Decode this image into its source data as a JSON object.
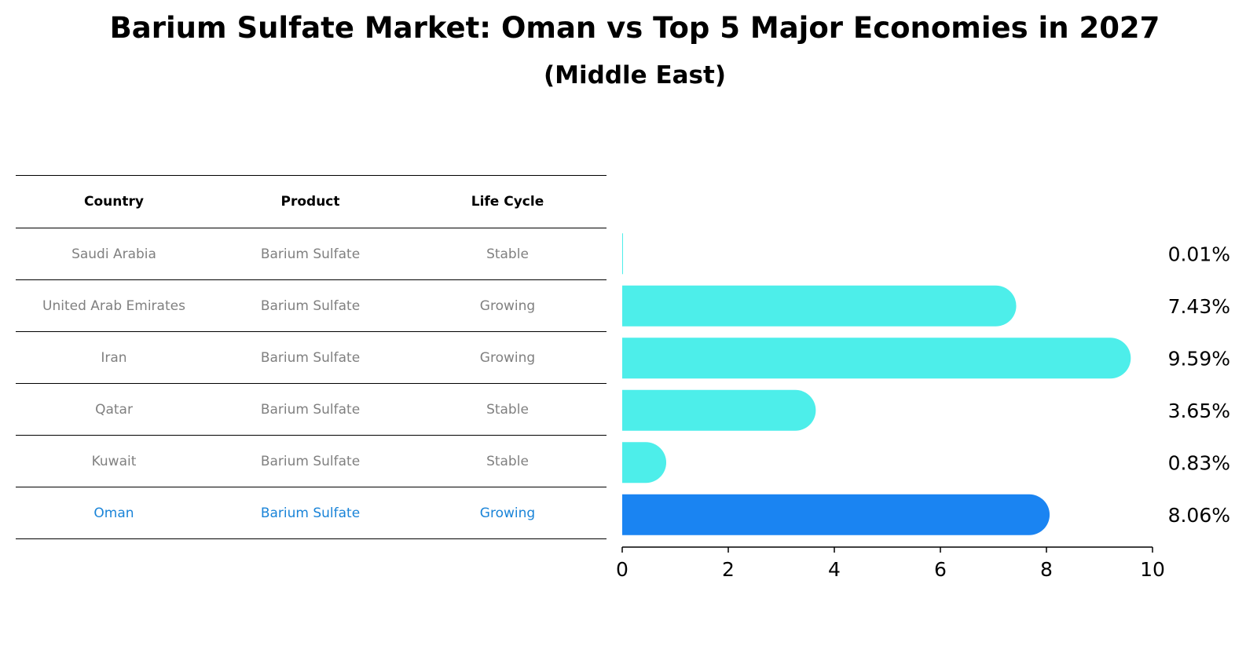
{
  "title": "Barium Sulfate Market: Oman vs Top 5 Major Economies in 2027",
  "subtitle": "(Middle East)",
  "table": {
    "headers": [
      "Country",
      "Product",
      "Life Cycle"
    ],
    "rows": [
      {
        "country": "Saudi Arabia",
        "product": "Barium Sulfate",
        "life_cycle": "Stable"
      },
      {
        "country": "United Arab Emirates",
        "product": "Barium Sulfate",
        "life_cycle": "Growing"
      },
      {
        "country": "Iran",
        "product": "Barium Sulfate",
        "life_cycle": "Growing"
      },
      {
        "country": "Qatar",
        "product": "Barium Sulfate",
        "life_cycle": "Stable"
      },
      {
        "country": "Kuwait",
        "product": "Barium Sulfate",
        "life_cycle": "Stable"
      },
      {
        "country": "Oman",
        "product": "Barium Sulfate",
        "life_cycle": "Growing",
        "highlight": true
      }
    ]
  },
  "chart_data": {
    "type": "bar",
    "orientation": "horizontal",
    "title": "Barium Sulfate Market: Oman vs Top 5 Major Economies in 2027",
    "subtitle": "(Middle East)",
    "categories": [
      "Saudi Arabia",
      "United Arab Emirates",
      "Iran",
      "Qatar",
      "Kuwait",
      "Oman"
    ],
    "values": [
      0.01,
      7.43,
      9.59,
      3.65,
      0.83,
      8.06
    ],
    "value_labels": [
      "0.01%",
      "7.43%",
      "9.59%",
      "3.65%",
      "0.83%",
      "8.06%"
    ],
    "xlim": [
      0,
      10
    ],
    "xticks": [
      "0",
      "2",
      "4",
      "6",
      "8",
      "10"
    ],
    "xlabel": "",
    "ylabel": "",
    "grid": false,
    "highlight_category": "Oman",
    "colors": {
      "default": "#4deeea",
      "highlight": "#1a84f2"
    }
  },
  "colors": {
    "muted_text": "#808080",
    "highlight_text": "#1a84d8"
  }
}
